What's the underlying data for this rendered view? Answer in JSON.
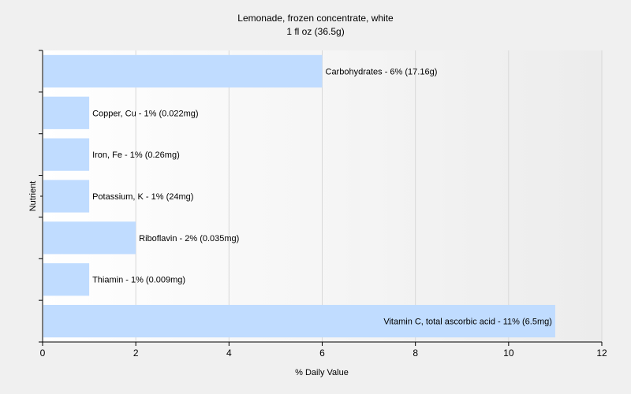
{
  "chart_data": {
    "type": "bar",
    "orientation": "horizontal",
    "title": "Lemonade, frozen concentrate, white",
    "subtitle": "1 fl oz (36.5g)",
    "xlabel": "% Daily Value",
    "ylabel": "Nutrient",
    "xlim": [
      0,
      12
    ],
    "x_ticks": [
      0,
      2,
      4,
      6,
      8,
      10,
      12
    ],
    "grid": true,
    "bar_color": "#c0dcff",
    "bars": [
      {
        "category": "Carbohydrates",
        "value": 6,
        "label": "Carbohydrates - 6% (17.16g)"
      },
      {
        "category": "Copper, Cu",
        "value": 1,
        "label": "Copper, Cu - 1% (0.022mg)"
      },
      {
        "category": "Iron, Fe",
        "value": 1,
        "label": "Iron, Fe - 1% (0.26mg)"
      },
      {
        "category": "Potassium, K",
        "value": 1,
        "label": "Potassium, K - 1% (24mg)"
      },
      {
        "category": "Riboflavin",
        "value": 2,
        "label": "Riboflavin - 2% (0.035mg)"
      },
      {
        "category": "Thiamin",
        "value": 1,
        "label": "Thiamin - 1% (0.009mg)"
      },
      {
        "category": "Vitamin C, total ascorbic acid",
        "value": 11,
        "label": "Vitamin C, total ascorbic acid - 11% (6.5mg)"
      }
    ]
  }
}
